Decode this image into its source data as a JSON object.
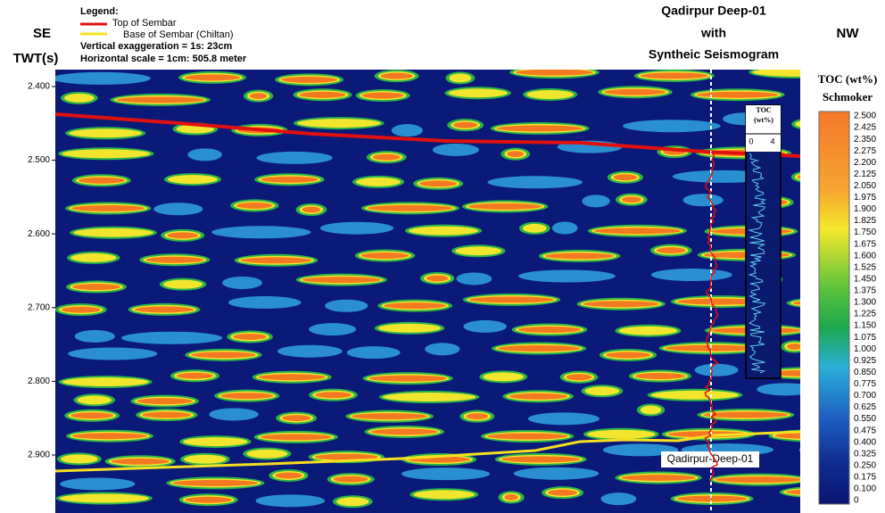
{
  "header": {
    "left": "SE",
    "right": "NW",
    "axis_title": "TWT(s)"
  },
  "legend": {
    "title": "Legend:",
    "items": [
      "Top of Sembar",
      "Base of Sembar (Chiltan)"
    ],
    "notes": [
      "Vertical exaggeration = 1s: 23cm",
      "Horizontal scale = 1cm: 505.8 meter"
    ]
  },
  "title": {
    "lines": [
      "Qadirpur Deep-01",
      "with",
      "Syntheic Seismogram"
    ]
  },
  "y_axis": {
    "ticks": [
      "2.400",
      "2.500",
      "2.600",
      "2.700",
      "2.800",
      "2.900"
    ]
  },
  "colorbar": {
    "title": [
      "TOC (wt%)",
      "Schmoker"
    ],
    "ticks": [
      "2.500",
      "2.425",
      "2.350",
      "2.275",
      "2.200",
      "2.125",
      "2.050",
      "1.975",
      "1.900",
      "1.825",
      "1.750",
      "1.675",
      "1.600",
      "1.525",
      "1.450",
      "1.375",
      "1.300",
      "1.225",
      "1.150",
      "1.075",
      "1.000",
      "0.925",
      "0.850",
      "0.775",
      "0.700",
      "0.625",
      "0.550",
      "0.475",
      "0.400",
      "0.325",
      "0.250",
      "0.175",
      "0.100",
      "0"
    ]
  },
  "well_log": {
    "title": [
      "TOC",
      "(wt%)"
    ],
    "scale": [
      "0",
      "4"
    ]
  },
  "well_label": "Qadirpur-Deep-01"
}
